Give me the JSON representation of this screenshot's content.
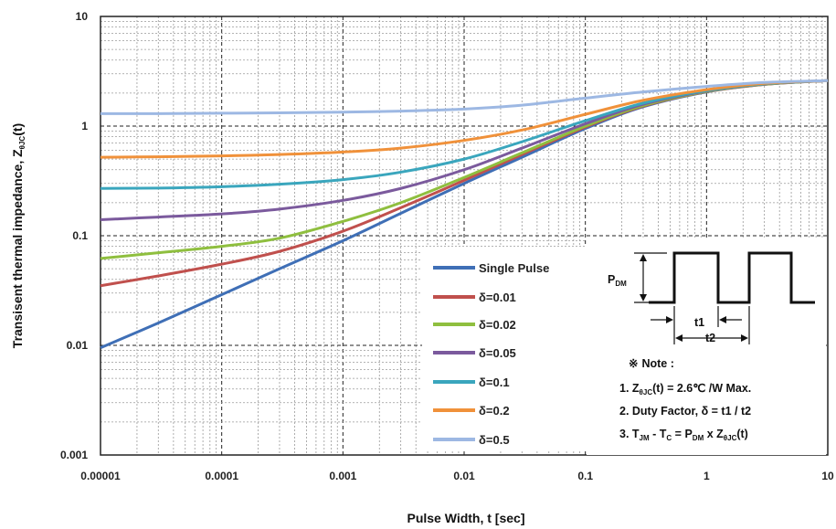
{
  "chart_data": {
    "type": "line",
    "x_scale": "log",
    "y_scale": "log",
    "xlabel": "Pulse Width,  t  [sec]",
    "ylabel_main": "Transisent thermal impedance, Z",
    "ylabel_sub": "θJC",
    "ylabel_tail": "(t)",
    "xlim": [
      1e-05,
      10
    ],
    "ylim": [
      0.001,
      10
    ],
    "x_ticks": [
      "0.00001",
      "0.0001",
      "0.001",
      "0.01",
      "0.1",
      "1",
      "10"
    ],
    "y_ticks": [
      "0.001",
      "0.01",
      "0.1",
      "1",
      "10"
    ],
    "grid": true,
    "legend_position": "lower-middle",
    "x": [
      1e-05,
      3e-05,
      0.0001,
      0.0003,
      0.001,
      0.003,
      0.01,
      0.03,
      0.1,
      0.3,
      1,
      3,
      10
    ],
    "series": [
      {
        "name": "Single Pulse",
        "color": "#3f6fb6",
        "values": [
          0.0095,
          0.016,
          0.029,
          0.05,
          0.09,
          0.16,
          0.3,
          0.52,
          0.95,
          1.5,
          2.05,
          2.4,
          2.6
        ]
      },
      {
        "name": "δ=0.01",
        "color": "#c0504d",
        "values": [
          0.035,
          0.043,
          0.055,
          0.072,
          0.11,
          0.18,
          0.32,
          0.55,
          0.98,
          1.52,
          2.06,
          2.4,
          2.6
        ]
      },
      {
        "name": "δ=0.02",
        "color": "#8fbf3f",
        "values": [
          0.062,
          0.07,
          0.08,
          0.095,
          0.135,
          0.2,
          0.34,
          0.57,
          1.0,
          1.54,
          2.07,
          2.41,
          2.6
        ]
      },
      {
        "name": "δ=0.05",
        "color": "#7b5a9d",
        "values": [
          0.14,
          0.148,
          0.158,
          0.175,
          0.21,
          0.27,
          0.4,
          0.63,
          1.05,
          1.58,
          2.09,
          2.42,
          2.6
        ]
      },
      {
        "name": "δ=0.1",
        "color": "#3aa6bd",
        "values": [
          0.27,
          0.272,
          0.28,
          0.295,
          0.325,
          0.38,
          0.5,
          0.72,
          1.12,
          1.62,
          2.11,
          2.43,
          2.6
        ]
      },
      {
        "name": "δ=0.2",
        "color": "#f0913a",
        "values": [
          0.52,
          0.525,
          0.535,
          0.55,
          0.58,
          0.63,
          0.74,
          0.92,
          1.28,
          1.72,
          2.15,
          2.45,
          2.6
        ]
      },
      {
        "name": "δ=0.5",
        "color": "#9db8e3",
        "values": [
          1.3,
          1.3,
          1.31,
          1.32,
          1.34,
          1.37,
          1.43,
          1.55,
          1.8,
          2.05,
          2.3,
          2.5,
          2.6
        ]
      }
    ]
  },
  "inset": {
    "pdm": "P",
    "pdm_sub": "DM",
    "t1": "t1",
    "t2": "t2",
    "note_symbol": "※",
    "note_title": "Note :",
    "note1_pre": "1. Z",
    "note1_sub": "θJC",
    "note1_post": "(t) = 2.6℃ /W Max.",
    "note2": "2. Duty Factor, δ = t1 / t2",
    "note3_a": "3. T",
    "note3_a_sub": "JM",
    "note3_b": " - T",
    "note3_b_sub": "C",
    "note3_c": " = P",
    "note3_c_sub": "DM",
    "note3_d": " x Z",
    "note3_d_sub": "θJC",
    "note3_e": "(t)"
  }
}
